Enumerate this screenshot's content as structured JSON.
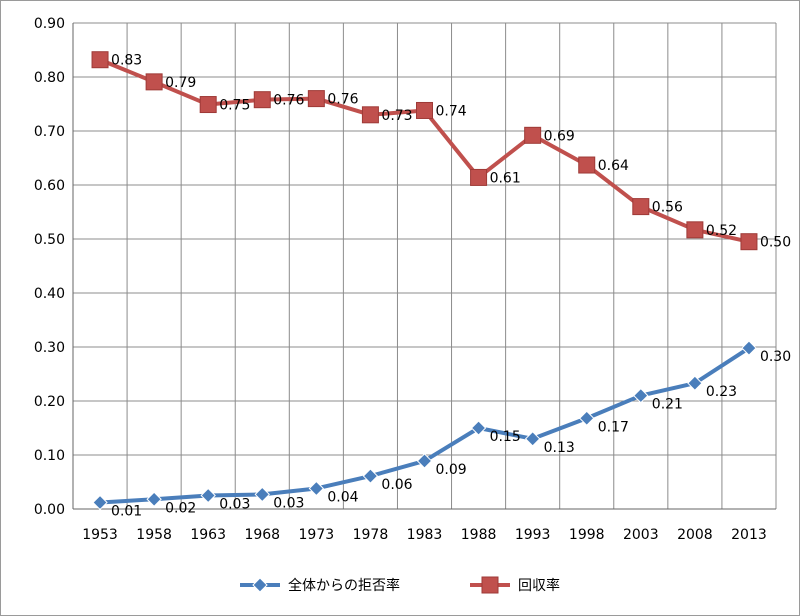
{
  "chart_data": {
    "type": "line",
    "categories": [
      "1953",
      "1958",
      "1963",
      "1968",
      "1973",
      "1978",
      "1983",
      "1988",
      "1993",
      "1998",
      "2003",
      "2008",
      "2013"
    ],
    "ylim": [
      0,
      0.9
    ],
    "yticks": [
      "0.00",
      "0.10",
      "0.20",
      "0.30",
      "0.40",
      "0.50",
      "0.60",
      "0.70",
      "0.80",
      "0.90"
    ],
    "grid": true,
    "legend_position": "bottom",
    "series": [
      {
        "name": "全体からの拒否率",
        "color": "#4a7ebb",
        "marker": "diamond",
        "values": [
          0.012,
          0.018,
          0.025,
          0.027,
          0.038,
          0.061,
          0.089,
          0.15,
          0.13,
          0.168,
          0.21,
          0.233,
          0.298
        ],
        "labels": [
          "0.01",
          "0.02",
          "0.03",
          "0.03",
          "0.04",
          "0.06",
          "0.09",
          "0.15",
          "0.13",
          "0.17",
          "0.21",
          "0.23",
          "0.30"
        ]
      },
      {
        "name": "回収率",
        "color": "#c0504d",
        "marker": "square",
        "values": [
          0.832,
          0.791,
          0.749,
          0.758,
          0.76,
          0.73,
          0.738,
          0.614,
          0.692,
          0.637,
          0.56,
          0.517,
          0.495
        ],
        "labels": [
          "0.83",
          "0.79",
          "0.75",
          "0.76",
          "0.76",
          "0.73",
          "0.74",
          "0.61",
          "0.69",
          "0.64",
          "0.56",
          "0.52",
          "0.50"
        ]
      }
    ]
  }
}
